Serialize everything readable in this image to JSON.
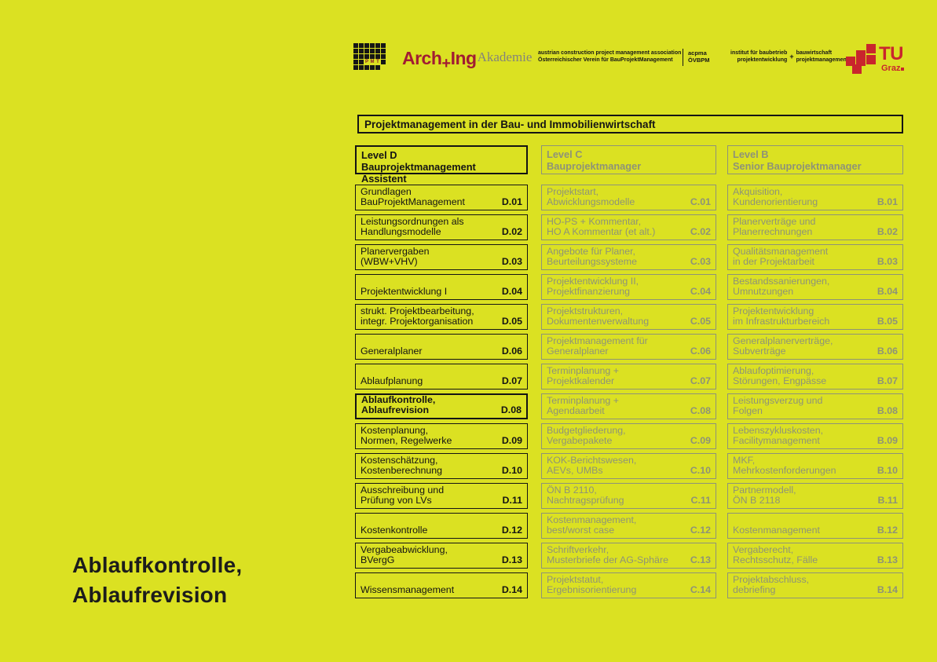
{
  "page": {
    "background": "#dbe122",
    "bottom_title": "Ablaufkontrolle,\nAblaufrevision"
  },
  "header": {
    "pmt_logo_text": "PMT",
    "brand_arch": "Arch",
    "brand_plus": "+",
    "brand_ing": "Ing",
    "brand_akademie": "Akademie",
    "association_line1": "austrian construction project management association",
    "association_line2": "Österreichischer Verein für BauProjektManagement",
    "acronym_line1": "acpma",
    "acronym_line2": "ÖVBPM",
    "institute_left_line1": "institut für baubetrieb",
    "institute_left_line2": "projektentwicklung",
    "institute_plus": "+",
    "institute_right_line1": "bauwirtschaft",
    "institute_right_line2": "projektmanagement",
    "tu_label": "TU",
    "graz_label": "Graz"
  },
  "title_bar": {
    "text": "Projektmanagement in der Bau- und Immobilienwirtschaft"
  },
  "colors": {
    "background": "#dbe122",
    "black": "#141414",
    "gray": "#8e9377",
    "brand_red": "#a11c33",
    "tu_red": "#c9252d"
  },
  "columns": [
    {
      "id": "D",
      "theme": "dark",
      "level": "Level D",
      "role": "Bauprojektmanagement Assistent",
      "items": [
        {
          "title": "Grundlagen\nBauProjektManagement",
          "code": "D.01"
        },
        {
          "title": "Leistungsordnungen als\nHandlungsmodelle",
          "code": "D.02"
        },
        {
          "title": "Planervergaben\n(WBW+VHV)",
          "code": "D.03"
        },
        {
          "title": "Projektentwicklung I",
          "code": "D.04"
        },
        {
          "title": "strukt. Projektbearbeitung,\nintegr. Projektorganisation",
          "code": "D.05"
        },
        {
          "title": "Generalplaner",
          "code": "D.06"
        },
        {
          "title": "Ablaufplanung",
          "code": "D.07"
        },
        {
          "title": "Ablaufkontrolle,\nAblaufrevision",
          "code": "D.08",
          "highlighted": true
        },
        {
          "title": "Kostenplanung,\nNormen, Regelwerke",
          "code": "D.09"
        },
        {
          "title": "Kostenschätzung,\nKostenberechnung",
          "code": "D.10"
        },
        {
          "title": "Ausschreibung und\nPrüfung von LVs",
          "code": "D.11"
        },
        {
          "title": "Kostenkontrolle",
          "code": "D.12"
        },
        {
          "title": "Vergabeabwicklung,\nBVergG",
          "code": "D.13"
        },
        {
          "title": "Wissensmanagement",
          "code": "D.14"
        }
      ]
    },
    {
      "id": "C",
      "theme": "gray",
      "level": "Level C",
      "role": "Bauprojektmanager",
      "items": [
        {
          "title": "Projektstart,\nAbwicklungsmodelle",
          "code": "C.01"
        },
        {
          "title": "HO-PS + Kommentar,\nHO A Kommentar (et alt.)",
          "code": "C.02"
        },
        {
          "title": "Angebote für Planer,\nBeurteilungssysteme",
          "code": "C.03"
        },
        {
          "title": "Projektentwicklung II,\nProjektfinanzierung",
          "code": "C.04"
        },
        {
          "title": "Projektstrukturen,\nDokumentenverwaltung",
          "code": "C.05"
        },
        {
          "title": "Projektmanagement für\nGeneralplaner",
          "code": "C.06"
        },
        {
          "title": "Terminplanung +\nProjektkalender",
          "code": "C.07"
        },
        {
          "title": "Terminplanung +\nAgendaarbeit",
          "code": "C.08"
        },
        {
          "title": "Budgetgliederung,\nVergabepakete",
          "code": "C.09"
        },
        {
          "title": "KOK-Berichtswesen,\nAEVs, UMBs",
          "code": "C.10"
        },
        {
          "title": "ÖN B 2110,\nNachtragsprüfung",
          "code": "C.11"
        },
        {
          "title": "Kostenmanagement,\nbest/worst case",
          "code": "C.12"
        },
        {
          "title": "Schriftverkehr,\nMusterbriefe der AG-Sphäre",
          "code": "C.13"
        },
        {
          "title": "Projektstatut,\nErgebnisorientierung",
          "code": "C.14"
        }
      ]
    },
    {
      "id": "B",
      "theme": "gray",
      "level": "Level B",
      "role": "Senior Bauprojektmanager",
      "items": [
        {
          "title": "Akquisition,\nKundenorientierung",
          "code": "B.01"
        },
        {
          "title": "Planerverträge und\nPlanerrechnungen",
          "code": "B.02"
        },
        {
          "title": "Qualitätsmanagement\nin der Projektarbeit",
          "code": "B.03"
        },
        {
          "title": "Bestandssanierungen,\nUmnutzungen",
          "code": "B.04"
        },
        {
          "title": "Projektentwicklung\nim Infrastrukturbereich",
          "code": "B.05"
        },
        {
          "title": "Generalplanerverträge,\nSubverträge",
          "code": "B.06"
        },
        {
          "title": "Ablaufoptimierung,\nStörungen, Engpässe",
          "code": "B.07"
        },
        {
          "title": "Leistungsverzug und\nFolgen",
          "code": "B.08"
        },
        {
          "title": "Lebenszykluskosten,\nFacilitymanagement",
          "code": "B.09"
        },
        {
          "title": "MKF,\nMehrkostenforderungen",
          "code": "B.10"
        },
        {
          "title": "Partnermodell,\nÖN B 2118",
          "code": "B.11"
        },
        {
          "title": "Kostenmanagement",
          "code": "B.12"
        },
        {
          "title": "Vergaberecht,\nRechtsschutz, Fälle",
          "code": "B.13"
        },
        {
          "title": "Projektabschluss,\ndebriefing",
          "code": "B.14"
        }
      ]
    }
  ]
}
